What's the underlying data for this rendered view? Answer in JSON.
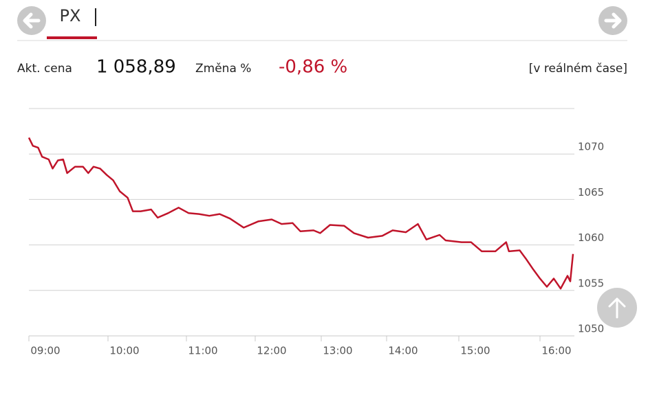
{
  "header": {
    "tab": "PX"
  },
  "quote": {
    "price_label": "Akt. cena",
    "price": "1 058,89",
    "change_label": "Změna %",
    "change": "-0,86 %",
    "mode": "[v reálném čase]"
  },
  "chart_data": {
    "type": "line",
    "color": "#c0142a",
    "grid": true,
    "x": [
      540,
      543,
      547,
      550,
      555,
      558,
      562,
      566,
      569,
      575,
      581,
      585,
      589,
      594,
      599,
      604,
      609,
      615,
      619,
      625,
      633,
      638,
      646,
      654,
      662,
      671,
      680,
      689,
      698,
      710,
      723,
      735,
      744,
      754,
      761,
      773,
      779,
      788,
      801,
      810,
      823,
      836,
      845,
      856,
      866,
      873,
      884,
      889,
      902,
      909,
      917,
      927,
      935,
      937,
      945,
      950,
      955,
      960,
      965,
      970,
      975,
      980,
      982,
      984
    ],
    "values": [
      1071.8,
      1070.9,
      1070.7,
      1069.7,
      1069.4,
      1068.4,
      1069.3,
      1069.4,
      1067.9,
      1068.6,
      1068.6,
      1067.9,
      1068.6,
      1068.4,
      1067.7,
      1067.1,
      1065.9,
      1065.2,
      1063.7,
      1063.7,
      1063.9,
      1063.0,
      1063.5,
      1064.1,
      1063.5,
      1063.4,
      1063.2,
      1063.4,
      1062.9,
      1061.9,
      1062.6,
      1062.8,
      1062.3,
      1062.4,
      1061.5,
      1061.6,
      1061.3,
      1062.2,
      1062.1,
      1061.3,
      1060.8,
      1061.0,
      1061.6,
      1061.4,
      1062.3,
      1060.6,
      1061.1,
      1060.5,
      1060.3,
      1060.3,
      1059.3,
      1059.3,
      1060.3,
      1059.3,
      1059.4,
      1058.4,
      1057.3,
      1056.3,
      1055.4,
      1056.3,
      1055.2,
      1056.6,
      1056.0,
      1059.0
    ],
    "xlim": [
      540,
      985
    ],
    "xticks": [
      {
        "value": 540,
        "label": "09:00"
      },
      {
        "value": 600,
        "label": "10:00"
      },
      {
        "value": 660,
        "label": "11:00"
      },
      {
        "value": 720,
        "label": "12:00"
      },
      {
        "value": 780,
        "label": "13:00"
      },
      {
        "value": 840,
        "label": "14:00"
      },
      {
        "value": 900,
        "label": "15:00"
      },
      {
        "value": 960,
        "label": "16:00"
      }
    ],
    "ylim": [
      1050,
      1075
    ],
    "yticks": [
      1050,
      1055,
      1060,
      1065,
      1070
    ]
  }
}
